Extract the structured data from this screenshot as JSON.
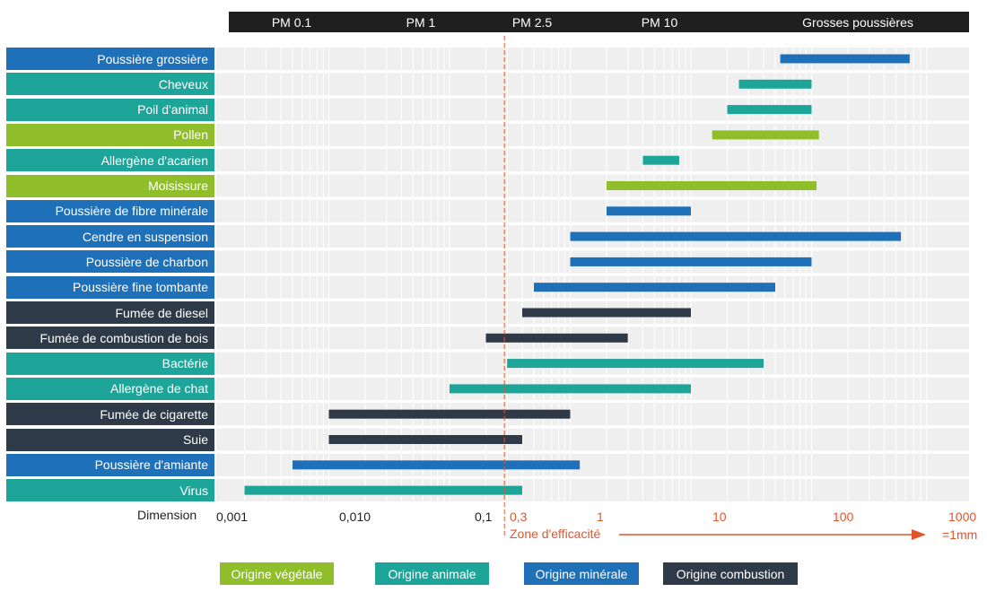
{
  "colors": {
    "vegetal": "#8fbe2a",
    "animal": "#1ea59a",
    "mineral": "#1e70b8",
    "combustion": "#2e3a48",
    "accent": "#e2552b",
    "plot_bg": "#efefef",
    "grid": "#ffffff"
  },
  "pm_header": [
    "PM 0.1",
    "PM 1",
    "PM 2.5",
    "PM 10",
    "Grosses poussières"
  ],
  "axis": {
    "dimension_label": "Dimension",
    "tick_labels": [
      "0,001",
      "0,010",
      "0,1",
      "0,3",
      "1",
      "10",
      "100",
      "1000"
    ],
    "unit_label": "=1mm",
    "zone_label": "Zone d'efficacité"
  },
  "legend": [
    {
      "label": "Origine végétale",
      "origin": "vegetal"
    },
    {
      "label": "Origine animale",
      "origin": "animal"
    },
    {
      "label": "Origine minérale",
      "origin": "mineral"
    },
    {
      "label": "Origine combustion",
      "origin": "combustion"
    }
  ],
  "chart_data": {
    "type": "bar",
    "orientation": "horizontal-range",
    "x_scale": "log",
    "xlim": [
      0.001,
      1000
    ],
    "threshold": 0.3,
    "grid": true,
    "categories": [
      {
        "name": "Poussière grossière",
        "origin": "mineral",
        "min": 55,
        "max": 650
      },
      {
        "name": "Cheveux",
        "origin": "animal",
        "min": 25,
        "max": 100
      },
      {
        "name": "Poil d'animal",
        "origin": "animal",
        "min": 20,
        "max": 100
      },
      {
        "name": "Pollen",
        "origin": "vegetal",
        "min": 15,
        "max": 115
      },
      {
        "name": "Allergène d'acarien",
        "origin": "animal",
        "min": 4,
        "max": 8
      },
      {
        "name": "Moisissure",
        "origin": "vegetal",
        "min": 2,
        "max": 110
      },
      {
        "name": "Poussière de fibre minérale",
        "origin": "mineral",
        "min": 2,
        "max": 10
      },
      {
        "name": "Cendre en suspension",
        "origin": "mineral",
        "min": 1,
        "max": 550
      },
      {
        "name": "Poussière de charbon",
        "origin": "mineral",
        "min": 1,
        "max": 100
      },
      {
        "name": "Poussière fine tombante",
        "origin": "mineral",
        "min": 0.5,
        "max": 50
      },
      {
        "name": "Fumée de diesel",
        "origin": "combustion",
        "min": 0.4,
        "max": 10
      },
      {
        "name": "Fumée de combustion de bois",
        "origin": "combustion",
        "min": 0.2,
        "max": 3
      },
      {
        "name": "Bactérie",
        "origin": "animal",
        "min": 0.3,
        "max": 40
      },
      {
        "name": "Allergène de chat",
        "origin": "animal",
        "min": 0.1,
        "max": 10
      },
      {
        "name": "Fumée de cigarette",
        "origin": "combustion",
        "min": 0.01,
        "max": 1
      },
      {
        "name": "Suie",
        "origin": "combustion",
        "min": 0.01,
        "max": 0.4
      },
      {
        "name": "Poussière d'amiante",
        "origin": "mineral",
        "min": 0.005,
        "max": 1.2
      },
      {
        "name": "Virus",
        "origin": "animal",
        "min": 0.002,
        "max": 0.4
      }
    ]
  }
}
